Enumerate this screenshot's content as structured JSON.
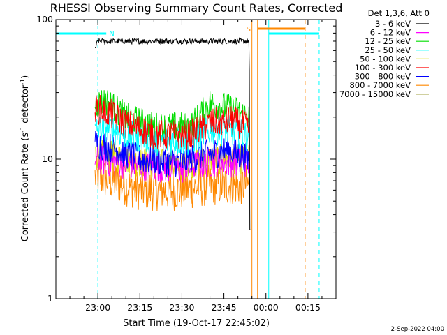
{
  "chart_data": {
    "type": "line",
    "title": "RHESSI Observing Summary Count Rates, Corrected",
    "xlabel": "Start Time (19-Oct-17 22:45:02)",
    "ylabel_main": "Corrected Count Rate (s",
    "ylabel_sup1": "-1",
    "ylabel_mid": " detector",
    "ylabel_sup2": "-1",
    "ylabel_end": ")",
    "yscale": "log",
    "ylim": [
      1,
      100
    ],
    "xlim_minutes_from_start": [
      0,
      100
    ],
    "x_ticks": [
      {
        "label": "23:00",
        "min": 15
      },
      {
        "label": "23:15",
        "min": 30
      },
      {
        "label": "23:30",
        "min": 45
      },
      {
        "label": "23:45",
        "min": 60
      },
      {
        "label": "00:00",
        "min": 75
      },
      {
        "label": "00:15",
        "min": 90
      }
    ],
    "y_ticks": [
      {
        "label": "1",
        "value": 1
      },
      {
        "label": "10",
        "value": 10
      },
      {
        "label": "100",
        "value": 100
      }
    ],
    "legend_header": "Det 1,3,6, Att 0",
    "series": [
      {
        "name": "3 - 6 keV",
        "color": "#000000",
        "values": [
          [
            14,
            62
          ],
          [
            15,
            70
          ],
          [
            30,
            70
          ],
          [
            45,
            70
          ],
          [
            55,
            70
          ],
          [
            69,
            70
          ],
          [
            69.5,
            3
          ]
        ]
      },
      {
        "name": "6 - 12 keV",
        "color": "#ff00ff",
        "values": [
          [
            14,
            10
          ],
          [
            20,
            9.5
          ],
          [
            30,
            9
          ],
          [
            45,
            8.5
          ],
          [
            55,
            9.5
          ],
          [
            69,
            9.5
          ]
        ]
      },
      {
        "name": "12 - 25 keV",
        "color": "#00dd00",
        "values": [
          [
            14,
            25
          ],
          [
            18,
            26
          ],
          [
            25,
            20
          ],
          [
            35,
            17
          ],
          [
            48,
            17
          ],
          [
            55,
            25
          ],
          [
            62,
            23
          ],
          [
            69,
            20
          ]
        ]
      },
      {
        "name": "25 - 50 keV",
        "color": "#00ffff",
        "values": [
          [
            14,
            16
          ],
          [
            18,
            17
          ],
          [
            25,
            15
          ],
          [
            35,
            13.5
          ],
          [
            48,
            13.5
          ],
          [
            55,
            16
          ],
          [
            62,
            16
          ],
          [
            69,
            14.5
          ]
        ]
      },
      {
        "name": "50 - 100 keV",
        "color": "#dddd00",
        "values": [
          [
            14,
            11
          ],
          [
            20,
            10.5
          ],
          [
            30,
            9.5
          ],
          [
            45,
            9
          ],
          [
            55,
            10
          ],
          [
            69,
            10
          ]
        ]
      },
      {
        "name": "100 - 300 keV",
        "color": "#ff0000",
        "values": [
          [
            14,
            23
          ],
          [
            18,
            22
          ],
          [
            25,
            18
          ],
          [
            35,
            15
          ],
          [
            48,
            15
          ],
          [
            55,
            18
          ],
          [
            62,
            19
          ],
          [
            69,
            17
          ]
        ]
      },
      {
        "name": "300 - 800 keV",
        "color": "#0000ff",
        "values": [
          [
            14,
            13
          ],
          [
            20,
            12
          ],
          [
            30,
            10
          ],
          [
            45,
            9.5
          ],
          [
            55,
            11
          ],
          [
            62,
            11.5
          ],
          [
            69,
            10
          ]
        ]
      },
      {
        "name": "800 - 7000 keV",
        "color": "#ff8800",
        "values": [
          [
            14,
            7.5
          ],
          [
            20,
            7
          ],
          [
            30,
            6
          ],
          [
            45,
            6
          ],
          [
            55,
            6.5
          ],
          [
            69,
            6.5
          ]
        ]
      },
      {
        "name": "7000 - 15000 keV",
        "color": "#808000",
        "values": []
      }
    ],
    "flags": {
      "top_left_bar_label": "N",
      "top_right_bar_label": "S"
    },
    "grid": false,
    "legend_position": "right"
  },
  "footer_date": "2-Sep-2022 04:00"
}
